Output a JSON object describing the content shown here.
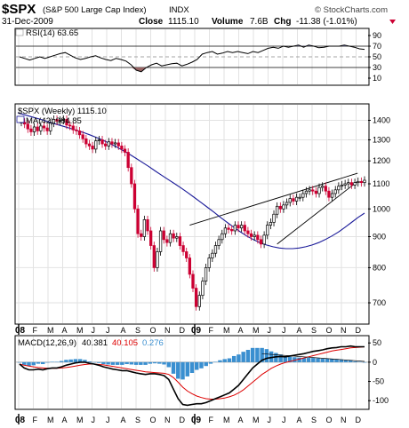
{
  "header": {
    "symbol": "$SPX",
    "name": "(S&P 500 Large Cap Index)",
    "exchange": "INDX",
    "date": "31-Dec-2009",
    "close_label": "Close",
    "close_value": "1115.10",
    "volume_label": "Volume",
    "volume_value": "7.6B",
    "chg_label": "Chg",
    "chg_value": "-11.38 (-1.01%)",
    "copyright": "© StockCharts.com",
    "down_color": "#cc0033"
  },
  "months": [
    "08",
    "F",
    "M",
    "A",
    "M",
    "J",
    "J",
    "A",
    "S",
    "O",
    "N",
    "D",
    "09",
    "F",
    "M",
    "A",
    "M",
    "J",
    "J",
    "A",
    "S",
    "O",
    "N",
    "D"
  ],
  "year_labels": [
    "08",
    "09"
  ],
  "chart_data": [
    {
      "type": "line",
      "panel": "rsi",
      "legend": "RSI(14) 63.65",
      "yticks": [
        10,
        30,
        50,
        70,
        90
      ],
      "ylim": [
        0,
        100
      ],
      "reference_lines": [
        30,
        50,
        70
      ],
      "series": [
        {
          "name": "RSI(14)",
          "color": "#000000",
          "values": [
            50,
            47,
            44,
            47,
            50,
            47,
            50,
            53,
            56,
            58,
            53,
            48,
            45,
            47,
            50,
            52,
            48,
            45,
            43,
            47,
            45,
            42,
            35,
            25,
            22,
            30,
            35,
            38,
            33,
            35,
            37,
            38,
            33,
            36,
            40,
            45,
            55,
            58,
            60,
            55,
            57,
            60,
            58,
            60,
            58,
            56,
            60,
            58,
            62,
            66,
            68,
            66,
            70,
            68,
            70,
            72,
            68,
            72,
            70,
            67,
            68,
            70,
            70,
            70,
            72,
            70,
            68,
            65,
            64
          ]
        }
      ]
    },
    {
      "type": "candlestick",
      "panel": "price",
      "title": "$SPX (Weekly) 1115.10",
      "legend": [
        "MA(42) 984.85"
      ],
      "scale": "log",
      "yticks": [
        700,
        800,
        900,
        1000,
        1100,
        1200,
        1300,
        1400
      ],
      "ylim": [
        650,
        1480
      ],
      "colors": {
        "up": "#000000",
        "down": "#cc0033",
        "ma": "#1a1a99",
        "trend": "#000000"
      },
      "series": [
        {
          "name": "$SPX",
          "values": [
            1390,
            1380,
            1355,
            1340,
            1365,
            1345,
            1370,
            1360,
            1345,
            1385,
            1405,
            1395,
            1400,
            1405,
            1375,
            1370,
            1350,
            1345,
            1325,
            1305,
            1280,
            1270,
            1255,
            1295,
            1300,
            1280,
            1270,
            1290,
            1280,
            1285,
            1270,
            1255,
            1240,
            1170,
            1100,
            1000,
            910,
            900,
            960,
            920,
            870,
            800,
            850,
            920,
            890,
            880,
            910,
            895,
            900,
            870,
            850,
            830,
            780,
            740,
            690,
            720,
            760,
            800,
            830,
            845,
            870,
            890,
            910,
            930,
            925,
            920,
            940,
            930,
            940,
            920,
            910,
            900,
            905,
            890,
            875,
            905,
            940,
            950,
            980,
            1010,
            1000,
            1015,
            1025,
            1040,
            1030,
            1045,
            1045,
            1060,
            1070,
            1075,
            1070,
            1060,
            1085,
            1090,
            1070,
            1045,
            1060,
            1075,
            1090,
            1095,
            1100,
            1105,
            1095,
            1105,
            1110,
            1105,
            1115
          ]
        },
        {
          "name": "MA(42)",
          "values": [
            1440,
            1430,
            1420,
            1410,
            1400,
            1388,
            1378,
            1368,
            1358,
            1347,
            1337,
            1325,
            1312,
            1298,
            1283,
            1267,
            1250,
            1232,
            1213,
            1194,
            1175,
            1155,
            1136,
            1118,
            1100,
            1082,
            1063,
            1044,
            1025,
            1006,
            987,
            968,
            950,
            933,
            917,
            902,
            890,
            880,
            872,
            866,
            862,
            860,
            860,
            862,
            866,
            872,
            880,
            890,
            902,
            916,
            932,
            950,
            968,
            984
          ]
        }
      ],
      "trendlines": [
        {
          "from": [
            "2009-01-02",
            940
          ],
          "to": [
            "2009-12-31",
            1145
          ]
        },
        {
          "from": [
            "2009-07-10",
            875
          ],
          "to": [
            "2009-12-31",
            1110
          ]
        }
      ]
    },
    {
      "type": "line",
      "panel": "macd",
      "legend": [
        "MACD(12,26,9)",
        "40.381",
        "40.105",
        "0.276"
      ],
      "yticks": [
        50,
        0,
        -50,
        -100
      ],
      "ylim": [
        -118,
        62
      ],
      "colors": {
        "macd": "#000000",
        "signal": "#dd0000",
        "histogram": "#3a8fd0"
      },
      "series": [
        {
          "name": "MACD",
          "values": [
            -5,
            -15,
            -20,
            -20,
            -18,
            -20,
            -17,
            -15,
            -15,
            -12,
            -8,
            -5,
            -2,
            0,
            0,
            -3,
            -5,
            -8,
            -12,
            -15,
            -18,
            -20,
            -22,
            -22,
            -25,
            -28,
            -30,
            -32,
            -30,
            -30,
            -32,
            -35,
            -45,
            -70,
            -95,
            -110,
            -112,
            -110,
            -108,
            -108,
            -105,
            -100,
            -95,
            -90,
            -85,
            -80,
            -70,
            -60,
            -45,
            -30,
            -15,
            -5,
            5,
            10,
            12,
            14,
            15,
            14,
            16,
            18,
            20,
            22,
            25,
            28,
            30,
            32,
            35,
            37,
            38,
            40,
            40,
            42,
            40,
            40,
            40
          ]
        },
        {
          "name": "Signal",
          "values": [
            -5,
            -8,
            -10,
            -12,
            -14,
            -15,
            -16,
            -16,
            -16,
            -15,
            -14,
            -12,
            -10,
            -8,
            -6,
            -5,
            -5,
            -6,
            -7,
            -9,
            -11,
            -13,
            -15,
            -17,
            -19,
            -21,
            -23,
            -25,
            -26,
            -27,
            -28,
            -29,
            -32,
            -40,
            -52,
            -65,
            -75,
            -82,
            -88,
            -92,
            -95,
            -96,
            -96,
            -95,
            -93,
            -90,
            -86,
            -80,
            -72,
            -62,
            -52,
            -42,
            -32,
            -24,
            -16,
            -10,
            -5,
            -1,
            2,
            5,
            8,
            11,
            14,
            17,
            20,
            23,
            26,
            29,
            31,
            33,
            35,
            37,
            38,
            39,
            40
          ]
        },
        {
          "name": "Histogram",
          "values": [
            0,
            -7,
            -10,
            -8,
            -4,
            -5,
            -1,
            1,
            1,
            3,
            6,
            7,
            8,
            8,
            6,
            2,
            0,
            -2,
            -5,
            -6,
            -7,
            -7,
            -7,
            -5,
            -6,
            -7,
            -7,
            -7,
            -4,
            -3,
            -4,
            -6,
            -13,
            -30,
            -43,
            -45,
            -37,
            -28,
            -20,
            -16,
            -10,
            -4,
            1,
            5,
            8,
            10,
            16,
            20,
            27,
            32,
            37,
            37,
            37,
            34,
            28,
            24,
            20,
            15,
            14,
            13,
            12,
            11,
            11,
            11,
            10,
            9,
            9,
            8,
            7,
            7,
            5,
            5,
            2,
            1,
            0
          ]
        }
      ]
    }
  ]
}
